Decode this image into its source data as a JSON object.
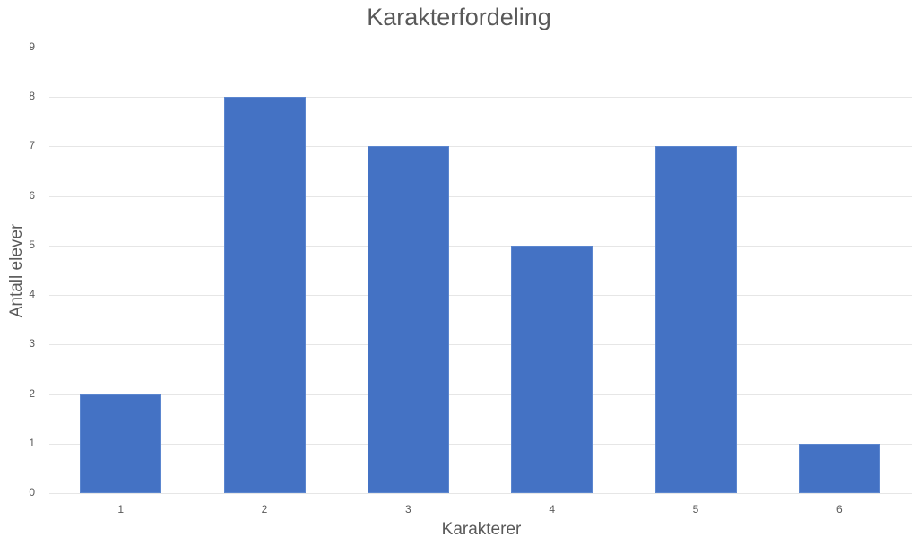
{
  "chart_data": {
    "type": "bar",
    "title": "Karakterfordeling",
    "xlabel": "Karakterer",
    "ylabel": "Antall elever",
    "categories": [
      "1",
      "2",
      "3",
      "4",
      "5",
      "6"
    ],
    "values": [
      2,
      8,
      7,
      5,
      7,
      1
    ],
    "ylim": [
      0,
      9
    ],
    "yticks": [
      "0",
      "1",
      "2",
      "3",
      "4",
      "5",
      "6",
      "7",
      "8",
      "9"
    ],
    "grid": true,
    "legend": null,
    "bar_color": "#4472c4"
  }
}
